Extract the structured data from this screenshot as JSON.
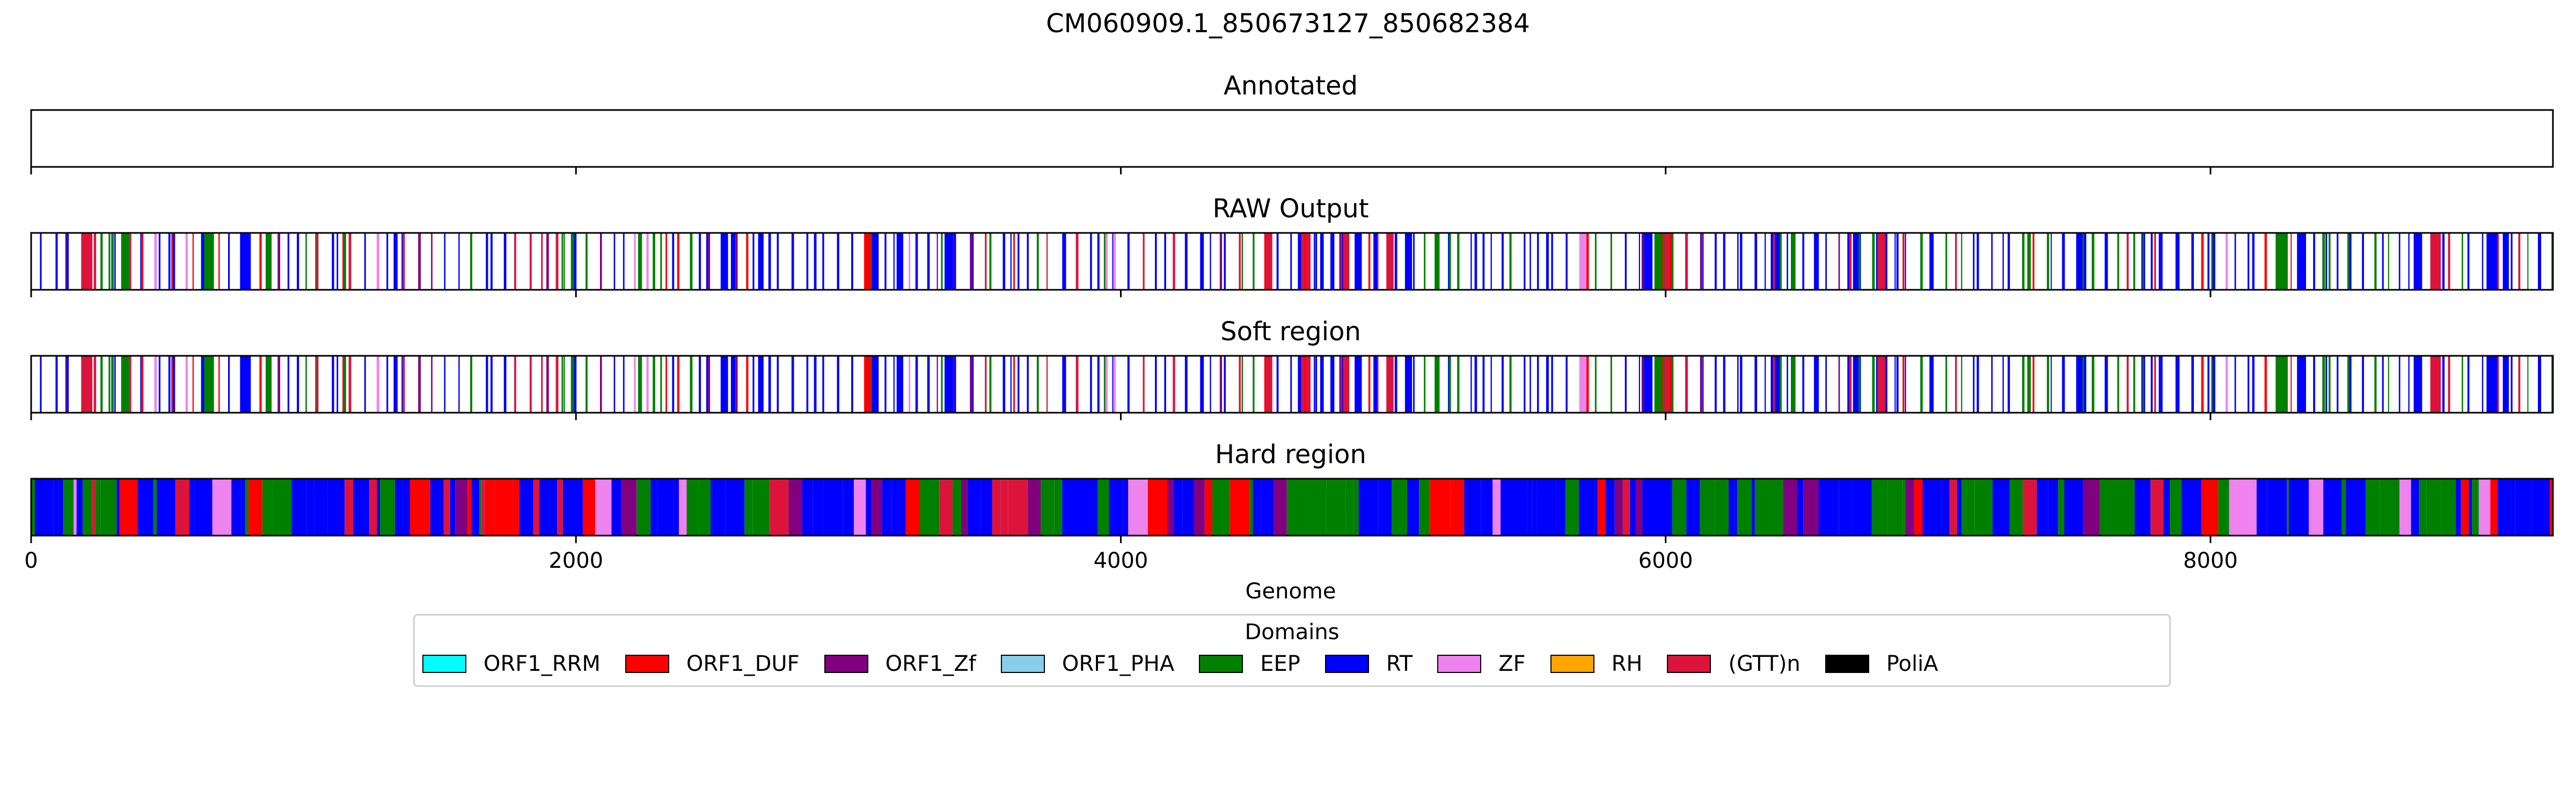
{
  "colors": {
    "ORF1_RRM": "#00ffff",
    "ORF1_DUF": "#ff0000",
    "ORF1_Zf": "#800080",
    "ORF1_PHA": "#87ceeb",
    "EEP": "#008000",
    "RT": "#0000ff",
    "ZF": "#ee82ee",
    "RH": "#ffa500",
    "(GTT)n": "#dc143c",
    "PoliA": "#000000"
  },
  "chart_data": {
    "type": "genome-track",
    "title": "CM060909.1_850673127_850682384",
    "xlabel": "Genome",
    "xlim": [
      0,
      9257
    ],
    "xticks": [
      0,
      2000,
      4000,
      6000,
      8000
    ],
    "grid": false,
    "panels": [
      {
        "id": "annotated",
        "title": "Annotated",
        "kind": "empty"
      },
      {
        "id": "raw",
        "title": "RAW Output",
        "kind": "sparse"
      },
      {
        "id": "soft",
        "title": "Soft region",
        "kind": "sparse"
      },
      {
        "id": "hard",
        "title": "Hard region",
        "kind": "dense"
      }
    ],
    "legend": {
      "title": "Domains",
      "placement": "lower-center",
      "entries": [
        "ORF1_RRM",
        "ORF1_DUF",
        "ORF1_Zf",
        "ORF1_PHA",
        "EEP",
        "RT",
        "ZF",
        "RH",
        "(GTT)n",
        "PoliA"
      ]
    }
  }
}
